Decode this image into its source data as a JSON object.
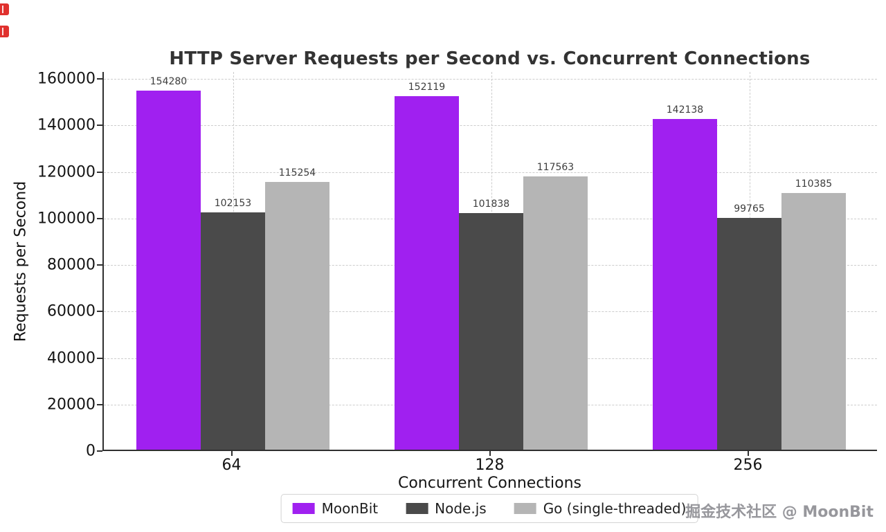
{
  "page": {
    "watermark": "掘金技术社区 @ MoonBit",
    "corner_icons": [
      "red-bookmark-icon",
      "red-bookmark-icon"
    ]
  },
  "chart_data": {
    "type": "bar",
    "title": "HTTP Server Requests per Second vs. Concurrent Connections",
    "xlabel": "Concurrent Connections",
    "ylabel": "Requests per Second",
    "categories": [
      "64",
      "128",
      "256"
    ],
    "series": [
      {
        "name": "MoonBit",
        "color": "#A020F0",
        "values": [
          154280,
          152119,
          142138
        ]
      },
      {
        "name": "Node.js",
        "color": "#4A4A4A",
        "values": [
          102153,
          101838,
          99765
        ]
      },
      {
        "name": "Go (single-threaded)",
        "color": "#B5B5B5",
        "values": [
          115254,
          117563,
          110385
        ]
      }
    ],
    "ylim": [
      0,
      160000
    ],
    "yticks": [
      0,
      20000,
      40000,
      60000,
      80000,
      100000,
      120000,
      140000,
      160000
    ],
    "grid": true,
    "grid_style": "dashed",
    "legend_position": "bottom-center",
    "value_labels": true
  }
}
